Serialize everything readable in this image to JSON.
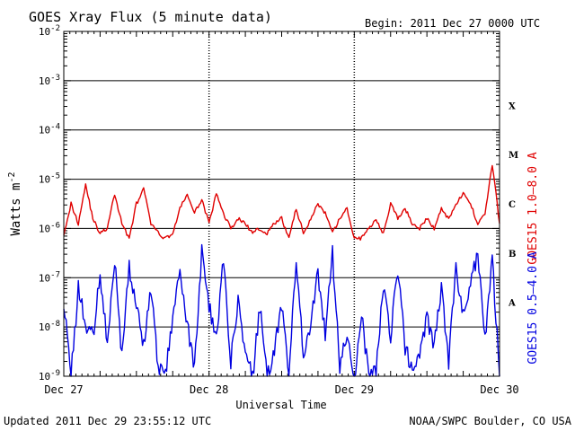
{
  "chart_data": {
    "type": "line",
    "title": "GOES Xray Flux (5 minute data)",
    "begin_label": "Begin:  2011 Dec 27 0000 UTC",
    "xlabel": "Universal Time",
    "ylabel_base": "Watts m",
    "ylabel_exp": "-2",
    "x_ticks": [
      "Dec 27",
      "Dec 28",
      "Dec 29",
      "Dec 30"
    ],
    "y_log_scale": true,
    "ylim": [
      1e-09,
      0.01
    ],
    "y_ticks": [
      {
        "base": "10",
        "exp": "-9"
      },
      {
        "base": "10",
        "exp": "-8"
      },
      {
        "base": "10",
        "exp": "-7"
      },
      {
        "base": "10",
        "exp": "-6"
      },
      {
        "base": "10",
        "exp": "-5"
      },
      {
        "base": "10",
        "exp": "-4"
      },
      {
        "base": "10",
        "exp": "-3"
      },
      {
        "base": "10",
        "exp": "-2"
      }
    ],
    "flare_classes": [
      "A",
      "B",
      "C",
      "M",
      "X"
    ],
    "grid": true,
    "series": [
      {
        "name": "GOES15 1.0–8.0 A",
        "color": "#e00000",
        "x_days": [
          0.0,
          0.05,
          0.1,
          0.15,
          0.2,
          0.25,
          0.3,
          0.35,
          0.4,
          0.45,
          0.5,
          0.55,
          0.6,
          0.65,
          0.7,
          0.75,
          0.8,
          0.85,
          0.9,
          0.95,
          1.0,
          1.05,
          1.1,
          1.15,
          1.2,
          1.25,
          1.3,
          1.35,
          1.4,
          1.45,
          1.5,
          1.55,
          1.6,
          1.65,
          1.7,
          1.75,
          1.8,
          1.85,
          1.9,
          1.95,
          2.0,
          2.05,
          2.1,
          2.15,
          2.2,
          2.25,
          2.3,
          2.35,
          2.4,
          2.45,
          2.5,
          2.55,
          2.6,
          2.65,
          2.7,
          2.75,
          2.8,
          2.85,
          2.9,
          2.95,
          3.0
        ],
        "log10_values": [
          -6.1,
          -5.5,
          -5.9,
          -5.1,
          -5.8,
          -6.1,
          -6.0,
          -5.3,
          -5.9,
          -6.2,
          -5.5,
          -5.2,
          -5.9,
          -6.1,
          -6.2,
          -6.1,
          -5.6,
          -5.3,
          -5.7,
          -5.4,
          -5.9,
          -5.3,
          -5.7,
          -6.0,
          -5.8,
          -5.9,
          -6.1,
          -6.0,
          -6.1,
          -5.9,
          -5.8,
          -6.2,
          -5.6,
          -6.1,
          -5.8,
          -5.5,
          -5.7,
          -6.1,
          -5.8,
          -5.6,
          -6.2,
          -6.2,
          -6.0,
          -5.8,
          -6.1,
          -5.5,
          -5.8,
          -5.6,
          -5.9,
          -6.0,
          -5.8,
          -6.0,
          -5.6,
          -5.8,
          -5.5,
          -5.3,
          -5.5,
          -5.9,
          -5.7,
          -4.7,
          -5.9
        ]
      },
      {
        "name": "GOES15 0.5–4.0 A",
        "color": "#0000e0",
        "x_days": [
          0.0,
          0.05,
          0.1,
          0.15,
          0.2,
          0.25,
          0.3,
          0.35,
          0.4,
          0.45,
          0.5,
          0.55,
          0.6,
          0.65,
          0.7,
          0.75,
          0.8,
          0.85,
          0.9,
          0.95,
          1.0,
          1.05,
          1.1,
          1.15,
          1.2,
          1.25,
          1.3,
          1.35,
          1.4,
          1.45,
          1.5,
          1.55,
          1.6,
          1.65,
          1.7,
          1.75,
          1.8,
          1.85,
          1.9,
          1.95,
          2.0,
          2.05,
          2.1,
          2.15,
          2.2,
          2.25,
          2.3,
          2.35,
          2.4,
          2.45,
          2.5,
          2.55,
          2.6,
          2.65,
          2.7,
          2.75,
          2.8,
          2.85,
          2.9,
          2.95,
          3.0
        ],
        "log10_values": [
          -7.5,
          -9.0,
          -7.2,
          -8.0,
          -8.2,
          -6.9,
          -8.4,
          -6.6,
          -8.6,
          -6.8,
          -7.5,
          -8.4,
          -7.2,
          -8.8,
          -9.0,
          -7.8,
          -6.9,
          -8.0,
          -8.8,
          -6.5,
          -7.6,
          -8.2,
          -6.6,
          -8.7,
          -7.4,
          -8.6,
          -9.0,
          -7.6,
          -9.0,
          -8.5,
          -7.5,
          -8.9,
          -6.7,
          -8.6,
          -8.0,
          -6.9,
          -8.2,
          -6.5,
          -8.8,
          -8.2,
          -9.0,
          -7.8,
          -9.0,
          -8.9,
          -7.2,
          -8.2,
          -6.8,
          -8.4,
          -8.9,
          -8.6,
          -7.8,
          -8.4,
          -7.2,
          -8.7,
          -6.8,
          -7.8,
          -7.0,
          -6.6,
          -8.2,
          -6.6,
          -9.0
        ]
      }
    ]
  },
  "footer": {
    "updated": "Updated 2011 Dec 29 23:55:12 UTC",
    "credit": "NOAA/SWPC Boulder, CO USA"
  }
}
